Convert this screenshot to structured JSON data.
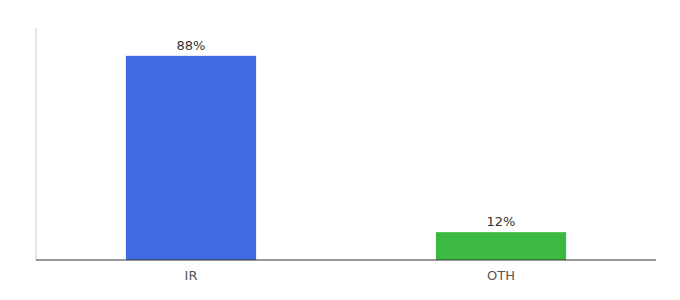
{
  "chart_data": {
    "type": "bar",
    "categories": [
      "IR",
      "OTH"
    ],
    "values": [
      88,
      12
    ],
    "value_labels": [
      "88%",
      "12%"
    ],
    "colors": [
      "#4169e1",
      "#3cb940"
    ],
    "ylim": [
      0,
      100
    ],
    "data_labels": true,
    "tick_labels": "x"
  }
}
